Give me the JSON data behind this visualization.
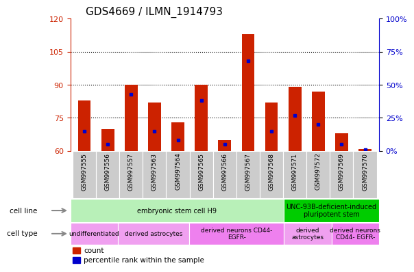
{
  "title": "GDS4669 / ILMN_1914793",
  "samples": [
    "GSM997555",
    "GSM997556",
    "GSM997557",
    "GSM997563",
    "GSM997564",
    "GSM997565",
    "GSM997566",
    "GSM997567",
    "GSM997568",
    "GSM997571",
    "GSM997572",
    "GSM997569",
    "GSM997570"
  ],
  "count_values": [
    83,
    70,
    90,
    82,
    73,
    90,
    65,
    113,
    82,
    89,
    87,
    68,
    61
  ],
  "percentile_values": [
    15,
    5,
    43,
    15,
    8,
    38,
    5,
    68,
    15,
    27,
    20,
    5,
    1
  ],
  "ylim_left": [
    60,
    120
  ],
  "ylim_right": [
    0,
    100
  ],
  "yticks_left": [
    60,
    75,
    90,
    105,
    120
  ],
  "yticks_right": [
    0,
    25,
    50,
    75,
    100
  ],
  "bar_color": "#cc2200",
  "dot_color": "#0000cc",
  "bar_width": 0.55,
  "cell_line_groups": [
    {
      "label": "embryonic stem cell H9",
      "start": 0,
      "end": 9,
      "color": "#b8f0b8"
    },
    {
      "label": "UNC-93B-deficient-induced\npluripotent stem",
      "start": 9,
      "end": 13,
      "color": "#00cc00"
    }
  ],
  "cell_type_groups": [
    {
      "label": "undifferentiated",
      "start": 0,
      "end": 2,
      "color": "#f0a0f0"
    },
    {
      "label": "derived astrocytes",
      "start": 2,
      "end": 5,
      "color": "#f0a0f0"
    },
    {
      "label": "derived neurons CD44-\nEGFR-",
      "start": 5,
      "end": 9,
      "color": "#ee80ee"
    },
    {
      "label": "derived\nastrocytes",
      "start": 9,
      "end": 11,
      "color": "#f0a0f0"
    },
    {
      "label": "derived neurons\nCD44- EGFR-",
      "start": 11,
      "end": 13,
      "color": "#ee80ee"
    }
  ],
  "left_axis_color": "#cc2200",
  "right_axis_color": "#0000cc",
  "tick_label_size": 8,
  "title_fontsize": 11
}
